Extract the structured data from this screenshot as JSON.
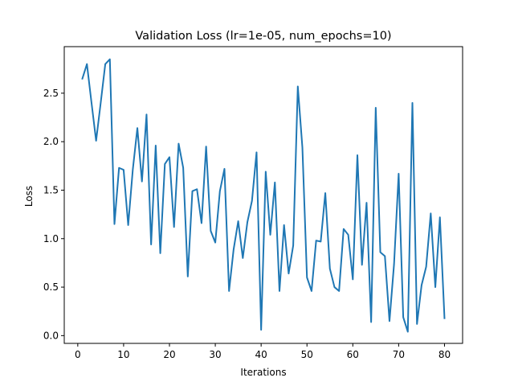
{
  "chart_data": {
    "type": "line",
    "title": "Validation Loss (lr=1e-05, num_epochs=10)",
    "xlabel": "Iterations",
    "ylabel": "Loss",
    "xlim": [
      -2.95,
      83.95
    ],
    "ylim": [
      -0.08,
      2.98
    ],
    "xticks": [
      0,
      10,
      20,
      30,
      40,
      50,
      60,
      70,
      80
    ],
    "yticks": [
      0.0,
      0.5,
      1.0,
      1.5,
      2.0,
      2.5
    ],
    "xtick_labels": [
      "0",
      "10",
      "20",
      "30",
      "40",
      "50",
      "60",
      "70",
      "80"
    ],
    "ytick_labels": [
      "0.0",
      "0.5",
      "1.0",
      "1.5",
      "2.0",
      "2.5"
    ],
    "grid": false,
    "line_color": "#1f77b4",
    "series": [
      {
        "x": [
          1,
          2,
          3,
          4,
          5,
          6,
          7,
          8,
          9,
          10,
          11,
          12,
          13,
          14,
          15,
          16,
          17,
          18,
          19,
          20,
          21,
          22,
          23,
          24,
          25,
          26,
          27,
          28,
          29,
          30,
          31,
          32,
          33,
          34,
          35,
          36,
          37,
          38,
          39,
          40,
          41,
          42,
          43,
          44,
          45,
          46,
          47,
          48,
          49,
          50,
          51,
          52,
          53,
          54,
          55,
          56,
          57,
          58,
          59,
          60,
          61,
          62,
          63,
          64,
          65,
          66,
          67,
          68,
          69,
          70,
          71,
          72,
          73,
          74,
          75,
          76,
          77,
          78,
          79,
          80
        ],
        "values": [
          2.65,
          2.8,
          2.4,
          2.01,
          2.4,
          2.8,
          2.85,
          1.15,
          1.73,
          1.71,
          1.14,
          1.71,
          2.14,
          1.59,
          2.28,
          0.94,
          1.96,
          0.85,
          1.77,
          1.84,
          1.12,
          1.98,
          1.73,
          0.61,
          1.49,
          1.51,
          1.16,
          1.95,
          1.08,
          0.96,
          1.49,
          1.72,
          0.46,
          0.89,
          1.18,
          0.8,
          1.17,
          1.39,
          1.89,
          0.06,
          1.69,
          1.04,
          1.58,
          0.46,
          1.14,
          0.64,
          0.93,
          2.57,
          1.94,
          0.6,
          0.46,
          0.98,
          0.97,
          1.47,
          0.69,
          0.5,
          0.46,
          1.1,
          1.04,
          0.58,
          1.86,
          0.73,
          1.37,
          0.14,
          2.35,
          0.86,
          0.82,
          0.15,
          0.74,
          1.67,
          0.19,
          0.04,
          2.4,
          0.12,
          0.52,
          0.71,
          1.26,
          0.5,
          1.22,
          0.18
        ]
      }
    ]
  }
}
